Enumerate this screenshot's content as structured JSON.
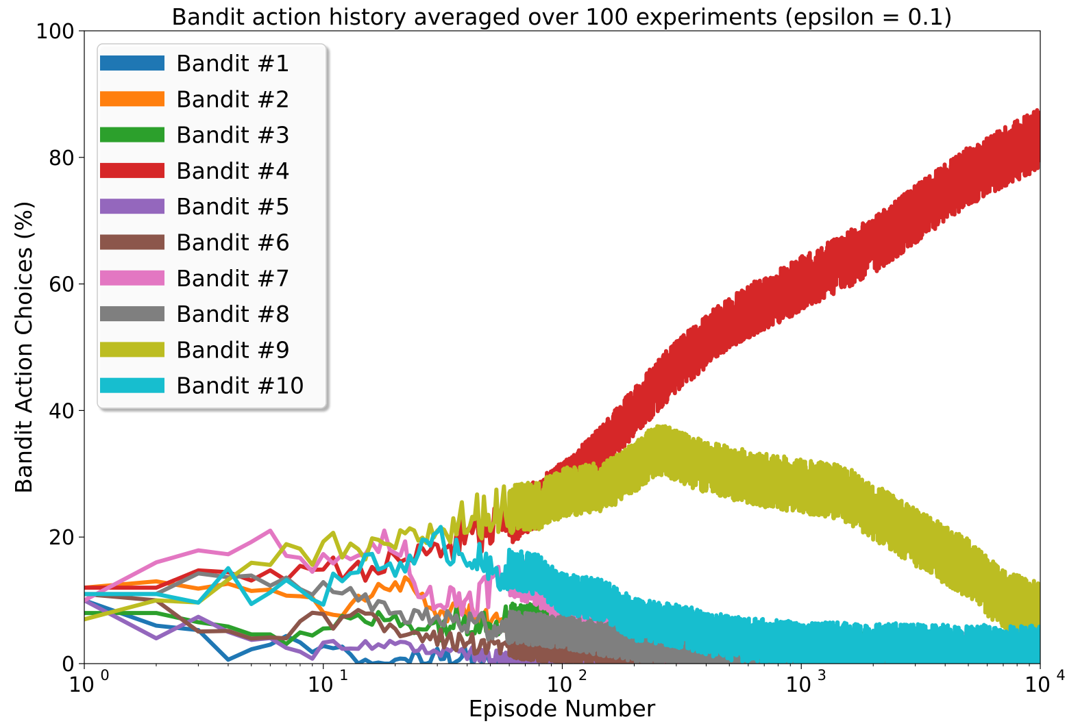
{
  "chart_data": {
    "type": "line",
    "title": "Bandit action history averaged over 100 experiments (epsilon = 0.1)",
    "xlabel": "Episode Number",
    "ylabel": "Bandit Action Choices (%)",
    "xscale": "log",
    "xlim": [
      1,
      10000
    ],
    "ylim": [
      0,
      100
    ],
    "grid": false,
    "legend_position": "top-left",
    "x_ticks": [
      {
        "value": 1,
        "base": "10",
        "exp": "0"
      },
      {
        "value": 10,
        "base": "10",
        "exp": "1"
      },
      {
        "value": 100,
        "base": "10",
        "exp": "2"
      },
      {
        "value": 1000,
        "base": "10",
        "exp": "3"
      },
      {
        "value": 10000,
        "base": "10",
        "exp": "4"
      }
    ],
    "y_ticks": [
      {
        "value": 0,
        "label": "0"
      },
      {
        "value": 20,
        "label": "20"
      },
      {
        "value": 40,
        "label": "40"
      },
      {
        "value": 60,
        "label": "60"
      },
      {
        "value": 80,
        "label": "80"
      },
      {
        "value": 100,
        "label": "100"
      }
    ],
    "series": [
      {
        "name": "Bandit #1",
        "color": "#1f77b4",
        "noise": 1.5,
        "points": [
          [
            1,
            10
          ],
          [
            2,
            6
          ],
          [
            3,
            5
          ],
          [
            4,
            1
          ],
          [
            5,
            2
          ],
          [
            6,
            2
          ],
          [
            7,
            4
          ],
          [
            8,
            3
          ],
          [
            10,
            2
          ],
          [
            12,
            2
          ],
          [
            14,
            0
          ],
          [
            17,
            0
          ],
          [
            20,
            0
          ],
          [
            22,
            0
          ],
          [
            24,
            2
          ],
          [
            26,
            0
          ],
          [
            30,
            1
          ],
          [
            40,
            1
          ],
          [
            50,
            0
          ],
          [
            10000,
            0
          ]
        ]
      },
      {
        "name": "Bandit #2",
        "color": "#ff7f0e",
        "noise": 1.5,
        "points": [
          [
            1,
            12
          ],
          [
            2,
            13
          ],
          [
            3,
            12
          ],
          [
            5,
            12
          ],
          [
            7,
            10
          ],
          [
            9,
            10
          ],
          [
            11,
            8
          ],
          [
            13,
            9
          ],
          [
            17,
            12
          ],
          [
            20,
            12
          ],
          [
            23,
            13
          ],
          [
            25,
            11
          ],
          [
            28,
            9
          ],
          [
            35,
            8
          ],
          [
            50,
            7
          ],
          [
            100,
            5
          ],
          [
            150,
            3
          ],
          [
            250,
            2
          ],
          [
            500,
            1
          ],
          [
            1000,
            1
          ],
          [
            10000,
            1
          ]
        ]
      },
      {
        "name": "Bandit #3",
        "color": "#2ca02c",
        "noise": 2,
        "points": [
          [
            1,
            8
          ],
          [
            2,
            8
          ],
          [
            3,
            7
          ],
          [
            4,
            6
          ],
          [
            5,
            5
          ],
          [
            7,
            4
          ],
          [
            9,
            4
          ],
          [
            11,
            6
          ],
          [
            14,
            7
          ],
          [
            20,
            7
          ],
          [
            25,
            6
          ],
          [
            30,
            6
          ],
          [
            40,
            7
          ],
          [
            60,
            7
          ],
          [
            100,
            7
          ],
          [
            200,
            5
          ],
          [
            500,
            3
          ],
          [
            1000,
            2
          ],
          [
            3000,
            2
          ],
          [
            10000,
            1
          ]
        ]
      },
      {
        "name": "Bandit #4",
        "color": "#d62728",
        "noise": 3,
        "points": [
          [
            1,
            12
          ],
          [
            2,
            12
          ],
          [
            3,
            13
          ],
          [
            5,
            14
          ],
          [
            7,
            15
          ],
          [
            10,
            15
          ],
          [
            14,
            15
          ],
          [
            20,
            16
          ],
          [
            30,
            18
          ],
          [
            50,
            21
          ],
          [
            70,
            24
          ],
          [
            100,
            28
          ],
          [
            150,
            34
          ],
          [
            200,
            40
          ],
          [
            300,
            47
          ],
          [
            500,
            54
          ],
          [
            700,
            57
          ],
          [
            1000,
            60
          ],
          [
            2000,
            66
          ],
          [
            3000,
            71
          ],
          [
            5000,
            77
          ],
          [
            7000,
            80
          ],
          [
            10000,
            83
          ]
        ]
      },
      {
        "name": "Bandit #5",
        "color": "#9467bd",
        "noise": 1,
        "points": [
          [
            1,
            10
          ],
          [
            2,
            4
          ],
          [
            3,
            7
          ],
          [
            4,
            5
          ],
          [
            5,
            4
          ],
          [
            6,
            4
          ],
          [
            8,
            2
          ],
          [
            9,
            1
          ],
          [
            10,
            4
          ],
          [
            12,
            3
          ],
          [
            15,
            3
          ],
          [
            20,
            3
          ],
          [
            30,
            2
          ],
          [
            50,
            1
          ],
          [
            80,
            0
          ],
          [
            10000,
            0
          ]
        ]
      },
      {
        "name": "Bandit #6",
        "color": "#8c564b",
        "noise": 1.5,
        "points": [
          [
            1,
            11
          ],
          [
            2,
            10
          ],
          [
            3,
            6
          ],
          [
            5,
            4
          ],
          [
            6,
            5
          ],
          [
            7,
            5
          ],
          [
            9,
            9
          ],
          [
            11,
            6
          ],
          [
            14,
            9
          ],
          [
            17,
            6
          ],
          [
            20,
            5
          ],
          [
            30,
            4
          ],
          [
            50,
            3
          ],
          [
            100,
            2
          ],
          [
            300,
            1
          ],
          [
            1000,
            0
          ],
          [
            10000,
            0
          ]
        ]
      },
      {
        "name": "Bandit #7",
        "color": "#e377c2",
        "noise": 2.5,
        "points": [
          [
            1,
            10
          ],
          [
            2,
            16
          ],
          [
            3,
            18
          ],
          [
            5,
            18
          ],
          [
            6,
            20
          ],
          [
            7,
            17
          ],
          [
            9,
            15
          ],
          [
            12,
            18
          ],
          [
            15,
            16
          ],
          [
            18,
            20
          ],
          [
            22,
            18
          ],
          [
            25,
            12
          ],
          [
            30,
            10
          ],
          [
            40,
            10
          ],
          [
            60,
            14
          ],
          [
            80,
            12
          ],
          [
            120,
            8
          ],
          [
            200,
            5
          ],
          [
            300,
            3
          ],
          [
            500,
            2
          ],
          [
            1000,
            1
          ],
          [
            10000,
            1
          ]
        ]
      },
      {
        "name": "Bandit #8",
        "color": "#7f7f7f",
        "noise": 2,
        "points": [
          [
            1,
            11
          ],
          [
            2,
            11
          ],
          [
            3,
            13
          ],
          [
            5,
            14
          ],
          [
            7,
            13
          ],
          [
            9,
            12
          ],
          [
            12,
            11
          ],
          [
            15,
            10
          ],
          [
            20,
            8
          ],
          [
            30,
            7
          ],
          [
            50,
            6
          ],
          [
            100,
            5
          ],
          [
            200,
            3
          ],
          [
            500,
            2
          ],
          [
            1000,
            1
          ],
          [
            10000,
            1
          ]
        ]
      },
      {
        "name": "Bandit #9",
        "color": "#bcbd22",
        "noise": 3,
        "points": [
          [
            1,
            7
          ],
          [
            2,
            10
          ],
          [
            3,
            9
          ],
          [
            5,
            16
          ],
          [
            7,
            17
          ],
          [
            9,
            16
          ],
          [
            11,
            19
          ],
          [
            14,
            17
          ],
          [
            20,
            19
          ],
          [
            30,
            21
          ],
          [
            50,
            24
          ],
          [
            80,
            25
          ],
          [
            100,
            27
          ],
          [
            150,
            28
          ],
          [
            200,
            31
          ],
          [
            250,
            34
          ],
          [
            400,
            31
          ],
          [
            700,
            29
          ],
          [
            1000,
            28
          ],
          [
            1500,
            27
          ],
          [
            2000,
            24
          ],
          [
            3000,
            20
          ],
          [
            5000,
            15
          ],
          [
            7000,
            10
          ],
          [
            10000,
            8
          ]
        ]
      },
      {
        "name": "Bandit #10",
        "color": "#17becf",
        "noise": 2.5,
        "points": [
          [
            1,
            11
          ],
          [
            2,
            11
          ],
          [
            3,
            11
          ],
          [
            4,
            15
          ],
          [
            5,
            11
          ],
          [
            6,
            12
          ],
          [
            8,
            12
          ],
          [
            10,
            11
          ],
          [
            12,
            14
          ],
          [
            15,
            16
          ],
          [
            20,
            15
          ],
          [
            25,
            18
          ],
          [
            30,
            19
          ],
          [
            40,
            18
          ],
          [
            50,
            14
          ],
          [
            60,
            15
          ],
          [
            80,
            14
          ],
          [
            100,
            11
          ],
          [
            150,
            10
          ],
          [
            200,
            7
          ],
          [
            300,
            6
          ],
          [
            500,
            4
          ],
          [
            1000,
            3
          ],
          [
            10000,
            2
          ]
        ]
      }
    ]
  }
}
